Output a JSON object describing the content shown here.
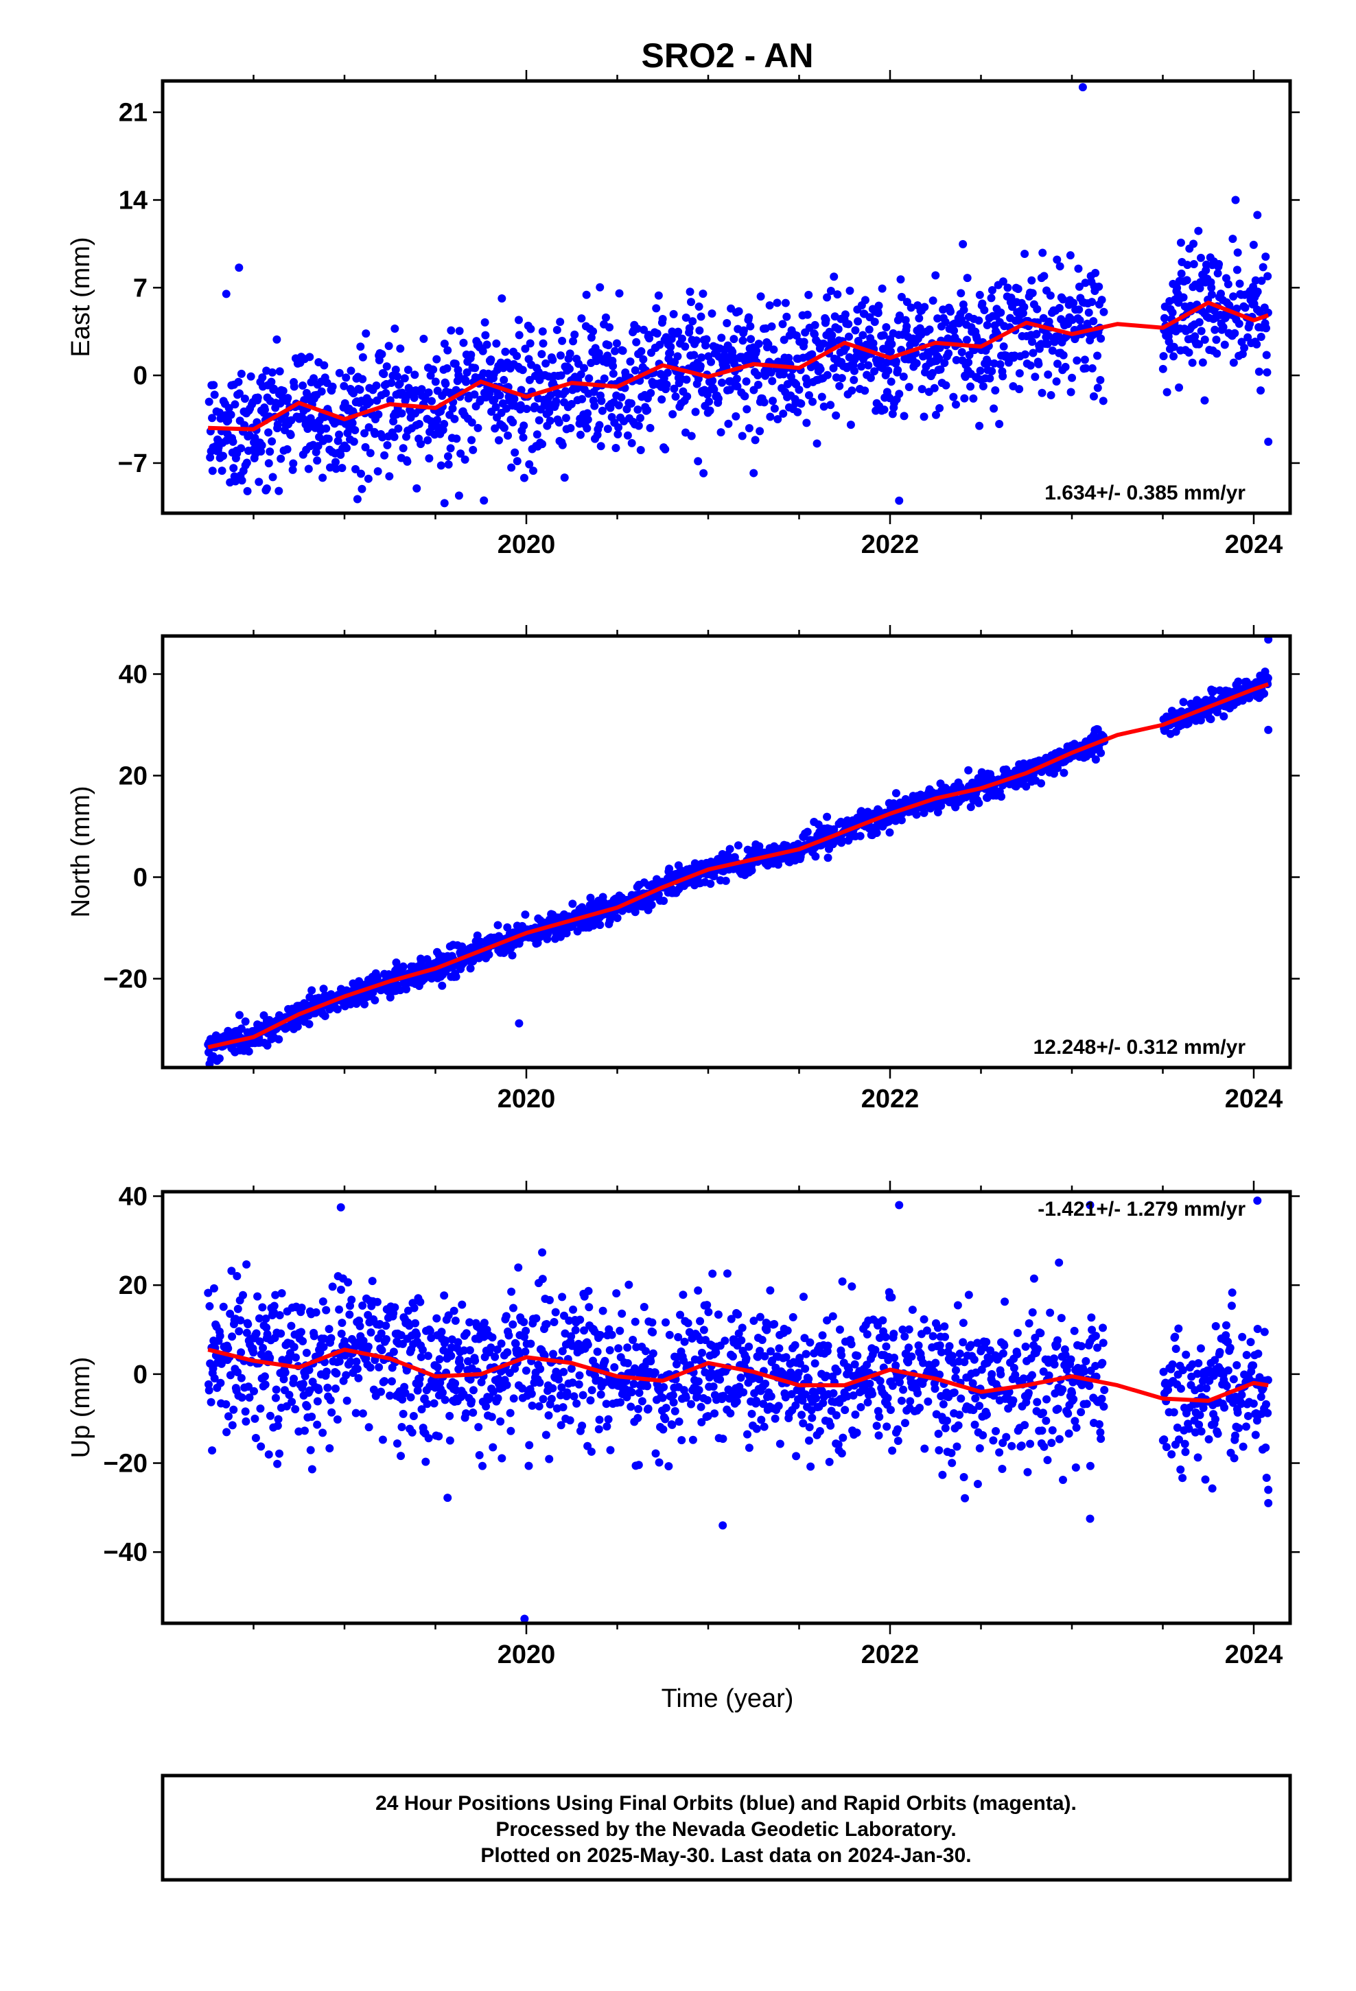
{
  "title": "SRO2 - AN",
  "x_axis_label": "Time (year)",
  "footer": {
    "line1": "24 Hour Positions Using Final Orbits (blue) and Rapid Orbits (magenta).",
    "line2": "Processed by the Nevada Geodetic Laboratory.",
    "line3": "Plotted on 2025-May-30. Last data on 2024-Jan-30."
  },
  "colors": {
    "final_orbits": "#0000ff",
    "fit_line": "#ff0000"
  },
  "chart_data": [
    {
      "type": "scatter",
      "ylabel": "East (mm)",
      "rate_label": "1.634+/- 0.385 mm/yr",
      "xlim": [
        2018.0,
        2024.2
      ],
      "ylim": [
        -11,
        23.5
      ],
      "yticks": [
        -7,
        0,
        7,
        14,
        21
      ],
      "xticks": [
        2020,
        2022,
        2024
      ],
      "data_range": [
        2018.25,
        2024.08
      ],
      "gaps": [
        [
          2023.18,
          2023.5
        ]
      ],
      "trend_rate": 1.634,
      "scatter_sd": 2.6,
      "fit_curve": {
        "x": [
          2018.25,
          2018.5,
          2018.75,
          2019.0,
          2019.25,
          2019.5,
          2019.75,
          2020.0,
          2020.25,
          2020.5,
          2020.75,
          2021.0,
          2021.25,
          2021.5,
          2021.75,
          2022.0,
          2022.25,
          2022.5,
          2022.75,
          2023.0,
          2023.25,
          2023.5,
          2023.75,
          2024.0,
          2024.08
        ],
        "y": [
          -4.2,
          -4.3,
          -2.2,
          -3.5,
          -2.3,
          -2.6,
          -0.5,
          -1.7,
          -0.6,
          -0.9,
          0.8,
          -0.1,
          0.9,
          0.6,
          2.6,
          1.4,
          2.6,
          2.3,
          4.2,
          3.3,
          4.1,
          3.8,
          5.8,
          4.4,
          4.8
        ]
      },
      "outliers": [
        [
          2018.35,
          6.5
        ],
        [
          2018.42,
          8.6
        ],
        [
          2023.06,
          23.0
        ],
        [
          2023.9,
          14.0
        ],
        [
          2024.02,
          12.8
        ],
        [
          2024.08,
          -5.3
        ],
        [
          2019.55,
          -10.2
        ],
        [
          2022.05,
          -10.0
        ],
        [
          2021.25,
          -7.8
        ],
        [
          2023.73,
          -2.0
        ]
      ]
    },
    {
      "type": "scatter",
      "ylabel": "North (mm)",
      "rate_label": "12.248+/- 0.312 mm/yr",
      "xlim": [
        2018.0,
        2024.2
      ],
      "ylim": [
        -37.5,
        47.5
      ],
      "yticks": [
        -20,
        0,
        20,
        40
      ],
      "xticks": [
        2020,
        2022,
        2024
      ],
      "data_range": [
        2018.25,
        2024.08
      ],
      "gaps": [
        [
          2023.18,
          2023.5
        ]
      ],
      "trend_rate": 12.248,
      "scatter_sd": 1.3,
      "fit_curve": {
        "x": [
          2018.25,
          2018.5,
          2018.75,
          2019.0,
          2019.25,
          2019.5,
          2019.75,
          2020.0,
          2020.25,
          2020.5,
          2020.75,
          2021.0,
          2021.25,
          2021.5,
          2021.75,
          2022.0,
          2022.25,
          2022.5,
          2022.75,
          2023.0,
          2023.25,
          2023.5,
          2023.75,
          2024.0,
          2024.08
        ],
        "y": [
          -33.5,
          -31.5,
          -27.0,
          -23.5,
          -20.5,
          -18.0,
          -14.5,
          -11.0,
          -8.5,
          -6.0,
          -2.0,
          1.5,
          3.5,
          5.5,
          9.0,
          12.5,
          15.5,
          17.5,
          20.5,
          24.5,
          28.0,
          30.0,
          33.5,
          37.0,
          38.0
        ]
      },
      "outliers": [
        [
          2019.96,
          -28.8
        ],
        [
          2024.08,
          46.8
        ],
        [
          2024.08,
          29.0
        ]
      ]
    },
    {
      "type": "scatter",
      "ylabel": "Up (mm)",
      "rate_label": "-1.421+/- 1.279 mm/yr",
      "xlabel": "Time (year)",
      "xlim": [
        2018.0,
        2024.2
      ],
      "ylim": [
        -56,
        41
      ],
      "yticks": [
        -40,
        -20,
        0,
        20,
        40
      ],
      "xticks": [
        2020,
        2022,
        2024
      ],
      "data_range": [
        2018.25,
        2024.08
      ],
      "gaps": [
        [
          2023.18,
          2023.5
        ]
      ],
      "trend_rate": -1.421,
      "scatter_sd": 8.0,
      "fit_curve": {
        "x": [
          2018.25,
          2018.5,
          2018.75,
          2019.0,
          2019.25,
          2019.5,
          2019.75,
          2020.0,
          2020.25,
          2020.5,
          2020.75,
          2021.0,
          2021.25,
          2021.5,
          2021.75,
          2022.0,
          2022.25,
          2022.5,
          2022.75,
          2023.0,
          2023.25,
          2023.5,
          2023.75,
          2024.0,
          2024.08
        ],
        "y": [
          5.5,
          3.0,
          1.5,
          5.5,
          3.5,
          -0.5,
          0.0,
          3.8,
          2.5,
          -0.5,
          -1.5,
          2.5,
          0.5,
          -2.5,
          -2.5,
          1.0,
          -1.0,
          -4.0,
          -2.5,
          -0.5,
          -2.5,
          -5.5,
          -6.0,
          -2.0,
          -2.5
        ]
      },
      "outliers": [
        [
          2019.99,
          -55.0
        ],
        [
          2021.08,
          -34.0
        ],
        [
          2023.1,
          -32.5
        ],
        [
          2023.1,
          38.0
        ],
        [
          2024.02,
          39.0
        ],
        [
          2022.05,
          38.0
        ],
        [
          2018.98,
          37.5
        ],
        [
          2024.08,
          -26.0
        ],
        [
          2024.08,
          -29.0
        ]
      ]
    }
  ]
}
